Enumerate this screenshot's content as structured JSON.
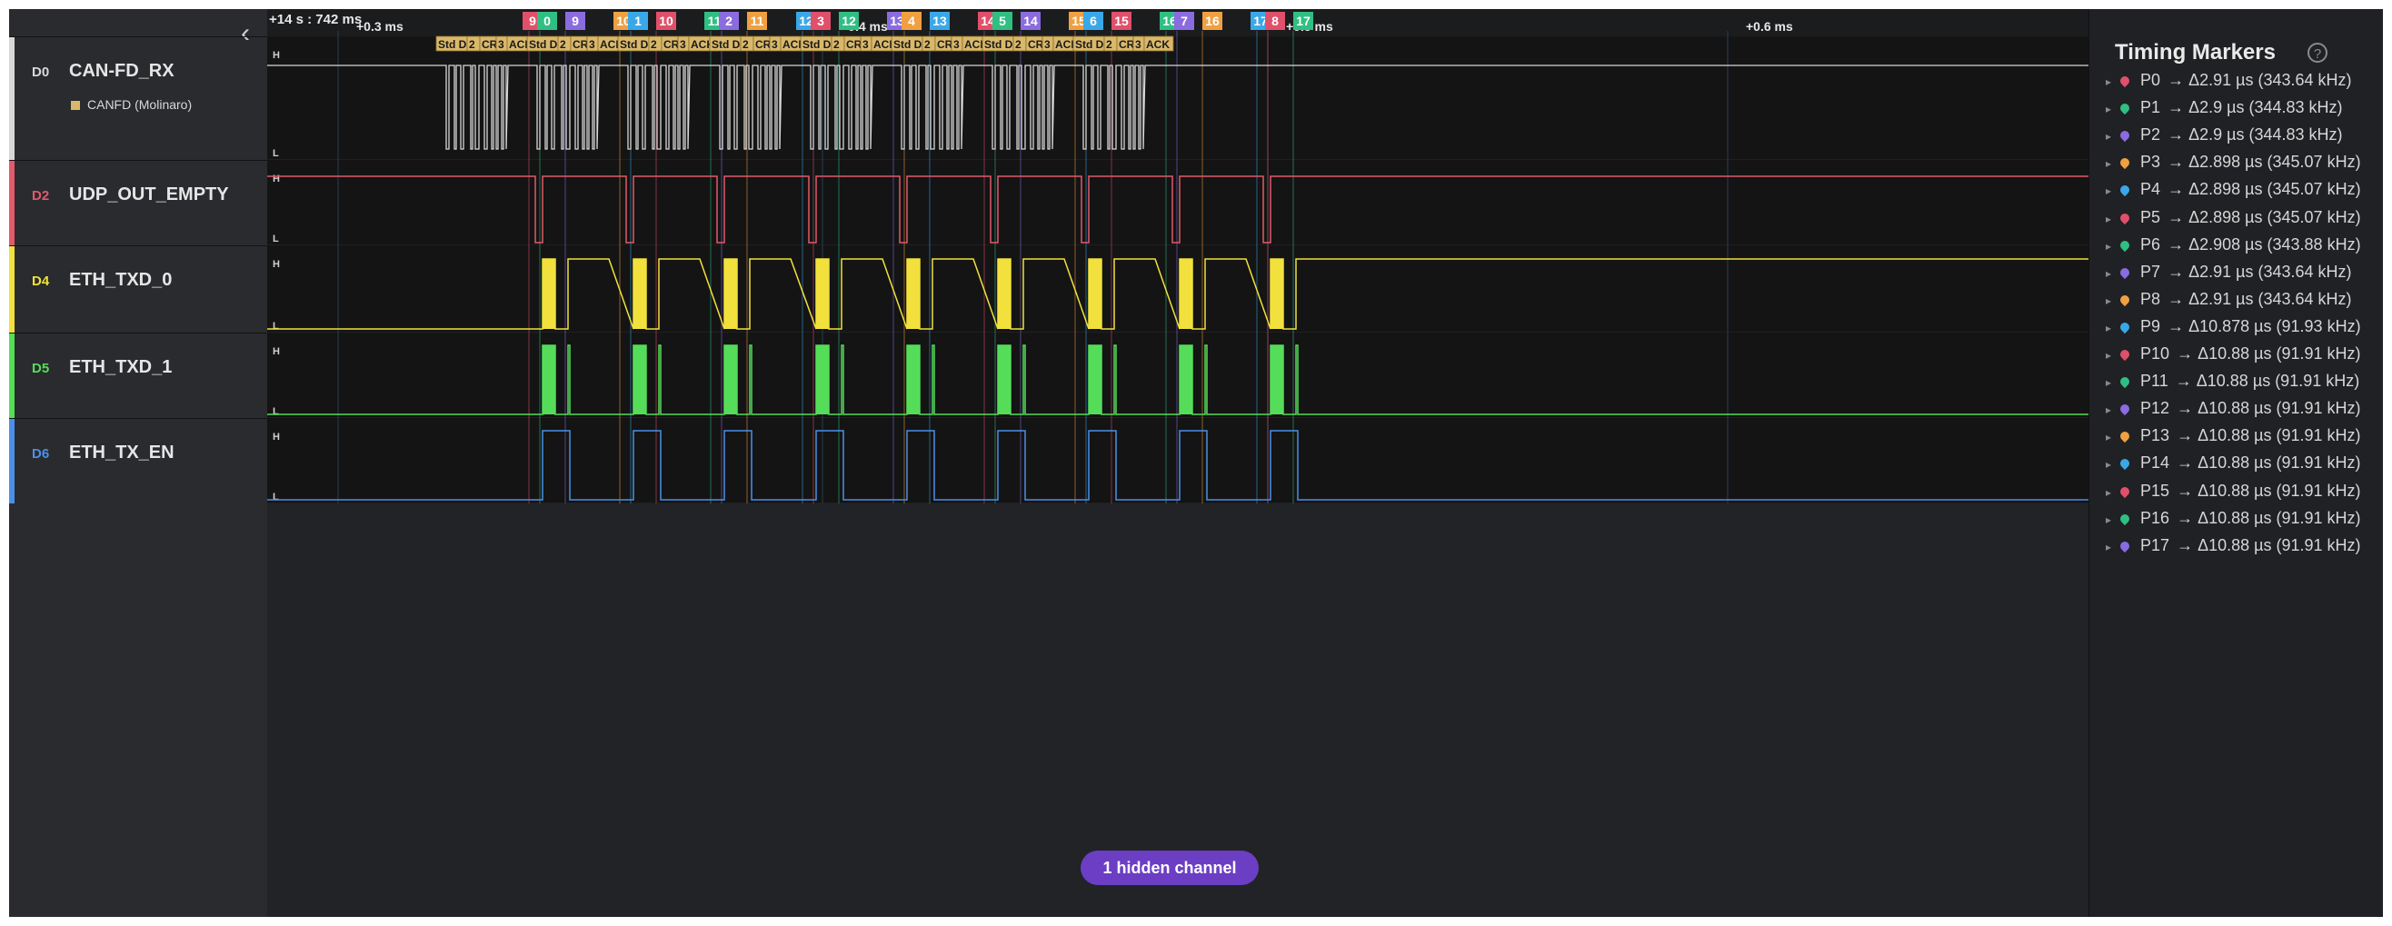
{
  "timeline": {
    "origin": "+14 s : 742 ms",
    "ticks": [
      "+0.3 ms",
      "+0.4 ms",
      "+0.5 ms",
      "+0.6 ms"
    ]
  },
  "channels": [
    {
      "id": "D0",
      "name": "CAN-FD_RX",
      "color": "#d8d8d8",
      "analyzer": "CANFD (Molinaro)"
    },
    {
      "id": "D2",
      "name": "UDP_OUT_EMPTY",
      "color": "#e2596b"
    },
    {
      "id": "D4",
      "name": "ETH_TXD_0",
      "color": "#f2e13c"
    },
    {
      "id": "D5",
      "name": "ETH_TXD_1",
      "color": "#55dd5a"
    },
    {
      "id": "D6",
      "name": "ETH_TX_EN",
      "color": "#4a90e8"
    }
  ],
  "level_labels": {
    "high": "H",
    "low": "L"
  },
  "decode_labels": [
    "Std Da",
    "2",
    "CR",
    "3",
    "ACK"
  ],
  "hidden_channels_label": "1 hidden channel",
  "marker_colors": [
    "#e0506a",
    "#2fbf82",
    "#8b6be0",
    "#f0a040",
    "#3aa8e8"
  ],
  "marker_flags": [
    "9",
    "0",
    "9",
    "10",
    "1",
    "10",
    "11",
    "2",
    "11",
    "12",
    "3",
    "12",
    "13",
    "4",
    "13",
    "14",
    "5",
    "14",
    "15",
    "6",
    "15",
    "16",
    "7",
    "16",
    "17",
    "8",
    "17"
  ],
  "timing_markers": {
    "title": "Timing Markers",
    "help_icon": "help-circle-icon",
    "items": [
      {
        "label": "P0",
        "value": "Δ2.91 µs (343.64 kHz)"
      },
      {
        "label": "P1",
        "value": "Δ2.9 µs (344.83 kHz)"
      },
      {
        "label": "P2",
        "value": "Δ2.9 µs (344.83 kHz)"
      },
      {
        "label": "P3",
        "value": "Δ2.898 µs (345.07 kHz)"
      },
      {
        "label": "P4",
        "value": "Δ2.898 µs (345.07 kHz)"
      },
      {
        "label": "P5",
        "value": "Δ2.898 µs (345.07 kHz)"
      },
      {
        "label": "P6",
        "value": "Δ2.908 µs (343.88 kHz)"
      },
      {
        "label": "P7",
        "value": "Δ2.91 µs (343.64 kHz)"
      },
      {
        "label": "P8",
        "value": "Δ2.91 µs (343.64 kHz)"
      },
      {
        "label": "P9",
        "value": "Δ10.878 µs (91.93 kHz)"
      },
      {
        "label": "P10",
        "value": "Δ10.88 µs (91.91 kHz)"
      },
      {
        "label": "P11",
        "value": "Δ10.88 µs (91.91 kHz)"
      },
      {
        "label": "P12",
        "value": "Δ10.88 µs (91.91 kHz)"
      },
      {
        "label": "P13",
        "value": "Δ10.88 µs (91.91 kHz)"
      },
      {
        "label": "P14",
        "value": "Δ10.88 µs (91.91 kHz)"
      },
      {
        "label": "P15",
        "value": "Δ10.88 µs (91.91 kHz)"
      },
      {
        "label": "P16",
        "value": "Δ10.88 µs (91.91 kHz)"
      },
      {
        "label": "P17",
        "value": "Δ10.88 µs (91.91 kHz)"
      }
    ]
  }
}
